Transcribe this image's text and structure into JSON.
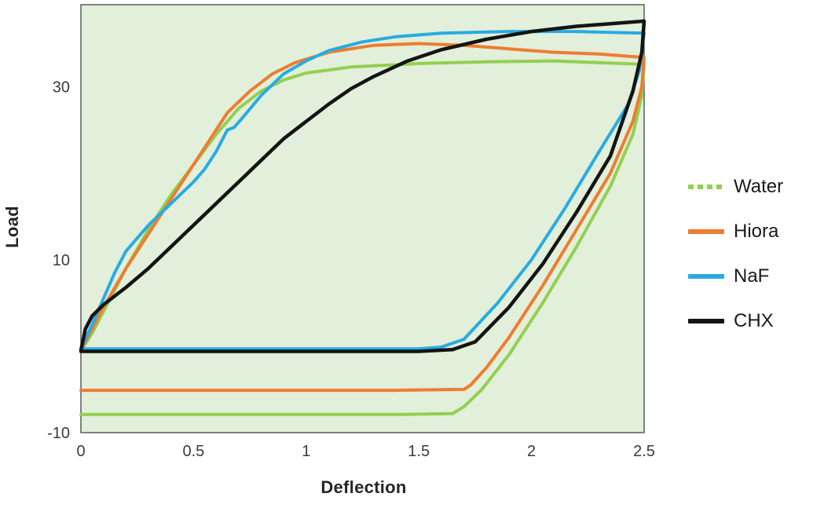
{
  "chart_data": {
    "type": "line",
    "title": "",
    "xlabel": "Deflection",
    "ylabel": "Load",
    "xlim": [
      0,
      2.5
    ],
    "ylim": [
      -10,
      39.5
    ],
    "x_ticks": [
      0,
      0.5,
      1,
      1.5,
      2,
      2.5
    ],
    "y_ticks": [
      30,
      10,
      -10
    ],
    "grid": false,
    "plot_bg": "#e2efda",
    "border_color": "#5a5a5a",
    "legend_position": "right",
    "series": [
      {
        "name": "Water",
        "color": "#92d050",
        "width": 4,
        "legend_dash": true,
        "points": [
          [
            0,
            -0.5
          ],
          [
            0.05,
            1.5
          ],
          [
            0.1,
            4
          ],
          [
            0.2,
            9
          ],
          [
            0.3,
            13.5
          ],
          [
            0.4,
            17.5
          ],
          [
            0.5,
            21
          ],
          [
            0.6,
            24.5
          ],
          [
            0.7,
            27.5
          ],
          [
            0.8,
            29.5
          ],
          [
            0.9,
            30.8
          ],
          [
            1.0,
            31.6
          ],
          [
            1.2,
            32.3
          ],
          [
            1.5,
            32.7
          ],
          [
            1.8,
            32.9
          ],
          [
            2.1,
            33
          ],
          [
            2.5,
            32.6
          ],
          [
            2.49,
            29
          ],
          [
            2.45,
            24.5
          ],
          [
            2.35,
            18.5
          ],
          [
            2.2,
            11.5
          ],
          [
            2.05,
            5
          ],
          [
            1.9,
            -1
          ],
          [
            1.78,
            -5
          ],
          [
            1.7,
            -7
          ],
          [
            1.65,
            -7.8
          ],
          [
            1.4,
            -7.9
          ],
          [
            1.0,
            -7.9
          ],
          [
            0.5,
            -7.9
          ],
          [
            0,
            -7.9
          ]
        ]
      },
      {
        "name": "Hiora",
        "color": "#ed7d31",
        "width": 4,
        "legend_dash": false,
        "points": [
          [
            0,
            -0.5
          ],
          [
            0.05,
            2
          ],
          [
            0.1,
            4.5
          ],
          [
            0.2,
            9
          ],
          [
            0.3,
            13
          ],
          [
            0.4,
            17
          ],
          [
            0.5,
            21
          ],
          [
            0.6,
            25
          ],
          [
            0.65,
            27
          ],
          [
            0.75,
            29.5
          ],
          [
            0.85,
            31.5
          ],
          [
            0.95,
            32.8
          ],
          [
            1.1,
            34
          ],
          [
            1.3,
            34.8
          ],
          [
            1.5,
            35
          ],
          [
            1.7,
            34.8
          ],
          [
            1.9,
            34.4
          ],
          [
            2.1,
            34
          ],
          [
            2.3,
            33.8
          ],
          [
            2.5,
            33.4
          ],
          [
            2.49,
            30
          ],
          [
            2.45,
            26
          ],
          [
            2.35,
            20
          ],
          [
            2.2,
            13.5
          ],
          [
            2.05,
            7
          ],
          [
            1.9,
            1
          ],
          [
            1.8,
            -2.5
          ],
          [
            1.73,
            -4.5
          ],
          [
            1.7,
            -5
          ],
          [
            1.4,
            -5.1
          ],
          [
            1.0,
            -5.1
          ],
          [
            0.5,
            -5.1
          ],
          [
            0,
            -5.1
          ]
        ]
      },
      {
        "name": "NaF",
        "color": "#29abe2",
        "width": 4,
        "legend_dash": false,
        "points": [
          [
            0,
            -0.3
          ],
          [
            0.05,
            2.5
          ],
          [
            0.1,
            5.5
          ],
          [
            0.15,
            8.5
          ],
          [
            0.2,
            11
          ],
          [
            0.3,
            14
          ],
          [
            0.4,
            16.5
          ],
          [
            0.5,
            19
          ],
          [
            0.55,
            20.5
          ],
          [
            0.6,
            22.5
          ],
          [
            0.65,
            25
          ],
          [
            0.68,
            25.3
          ],
          [
            0.72,
            26.5
          ],
          [
            0.8,
            29
          ],
          [
            0.9,
            31.5
          ],
          [
            1.0,
            33
          ],
          [
            1.1,
            34.2
          ],
          [
            1.25,
            35.2
          ],
          [
            1.4,
            35.8
          ],
          [
            1.6,
            36.2
          ],
          [
            1.9,
            36.4
          ],
          [
            2.2,
            36.4
          ],
          [
            2.5,
            36.2
          ],
          [
            2.48,
            32
          ],
          [
            2.43,
            28
          ],
          [
            2.3,
            22.5
          ],
          [
            2.15,
            16
          ],
          [
            2.0,
            10
          ],
          [
            1.85,
            5
          ],
          [
            1.7,
            0.8
          ],
          [
            1.6,
            -0.1
          ],
          [
            1.5,
            -0.3
          ],
          [
            1.2,
            -0.3
          ],
          [
            0.8,
            -0.3
          ],
          [
            0.4,
            -0.3
          ],
          [
            0,
            -0.3
          ]
        ]
      },
      {
        "name": "CHX",
        "color": "#141414",
        "width": 4.5,
        "legend_dash": false,
        "points": [
          [
            0,
            -0.5
          ],
          [
            0.02,
            2
          ],
          [
            0.05,
            3.5
          ],
          [
            0.1,
            4.8
          ],
          [
            0.2,
            6.8
          ],
          [
            0.3,
            9
          ],
          [
            0.4,
            11.5
          ],
          [
            0.5,
            14
          ],
          [
            0.6,
            16.5
          ],
          [
            0.7,
            19
          ],
          [
            0.8,
            21.5
          ],
          [
            0.9,
            24
          ],
          [
            1.0,
            26
          ],
          [
            1.1,
            28
          ],
          [
            1.2,
            29.8
          ],
          [
            1.3,
            31.2
          ],
          [
            1.45,
            33
          ],
          [
            1.6,
            34.3
          ],
          [
            1.8,
            35.5
          ],
          [
            2.0,
            36.4
          ],
          [
            2.2,
            37
          ],
          [
            2.4,
            37.4
          ],
          [
            2.5,
            37.6
          ],
          [
            2.49,
            34
          ],
          [
            2.45,
            29.5
          ],
          [
            2.35,
            22
          ],
          [
            2.2,
            15.5
          ],
          [
            2.05,
            9.5
          ],
          [
            1.9,
            4.5
          ],
          [
            1.75,
            0.5
          ],
          [
            1.65,
            -0.4
          ],
          [
            1.5,
            -0.6
          ],
          [
            1.2,
            -0.6
          ],
          [
            0.8,
            -0.6
          ],
          [
            0.4,
            -0.6
          ],
          [
            0,
            -0.6
          ]
        ]
      }
    ]
  }
}
